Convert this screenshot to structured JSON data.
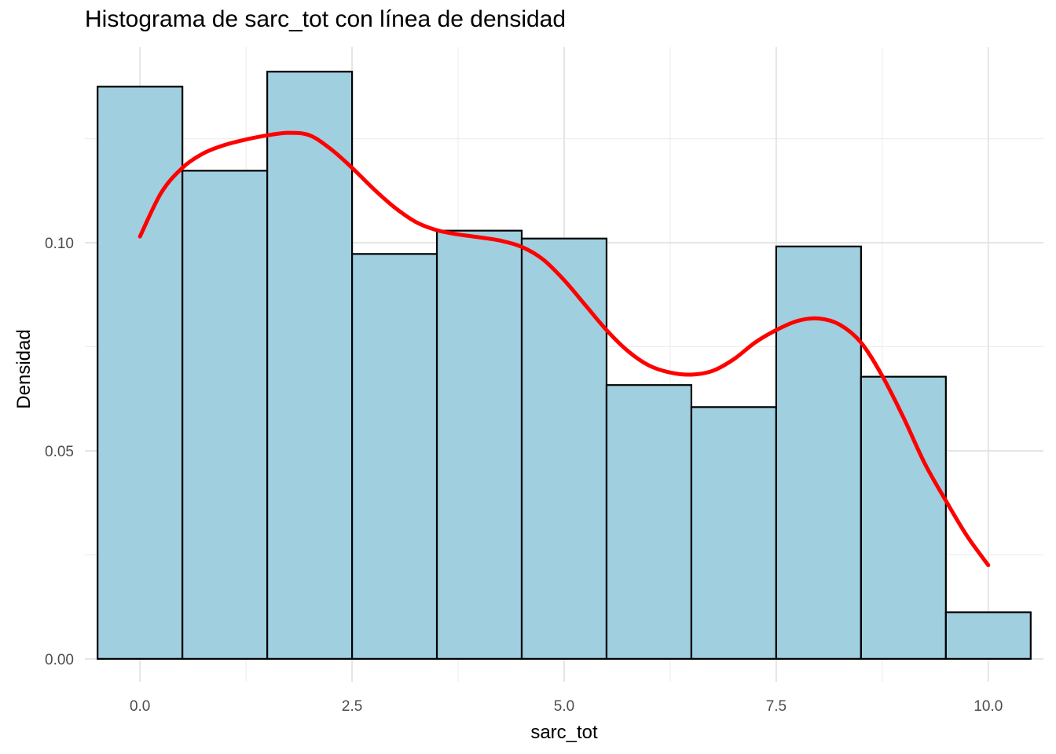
{
  "chart_data": {
    "type": "bar",
    "title": "Histograma de sarc_tot con línea de densidad",
    "xlabel": "sarc_tot",
    "ylabel": "Densidad",
    "bin_width": 1,
    "bins_center": [
      0,
      1,
      2,
      3,
      4,
      5,
      6,
      7,
      8,
      9,
      10
    ],
    "values": [
      0.1375,
      0.1173,
      0.1411,
      0.0973,
      0.1029,
      0.101,
      0.0658,
      0.0605,
      0.0991,
      0.0678,
      0.0112
    ],
    "xlim": [
      -0.65,
      10.65
    ],
    "ylim": [
      -0.0055,
      0.147
    ],
    "x_ticks": [
      0.0,
      2.5,
      5.0,
      7.5,
      10.0
    ],
    "x_tick_labels": [
      "0.0",
      "2.5",
      "5.0",
      "7.5",
      "10.0"
    ],
    "y_ticks": [
      0.0,
      0.05,
      0.1
    ],
    "y_tick_labels": [
      "0.00",
      "0.05",
      "0.10"
    ],
    "bar_fill": "#a0cfe0",
    "bar_stroke": "#000000",
    "density_color": "#ff0000",
    "density_line": {
      "x": [
        0,
        0.25,
        0.5,
        0.75,
        1.0,
        1.25,
        1.5,
        1.75,
        2.0,
        2.25,
        2.5,
        2.75,
        3.0,
        3.25,
        3.5,
        3.75,
        4.0,
        4.25,
        4.5,
        4.75,
        5.0,
        5.25,
        5.5,
        5.75,
        6.0,
        6.25,
        6.5,
        6.75,
        7.0,
        7.25,
        7.5,
        7.75,
        8.0,
        8.25,
        8.5,
        8.75,
        9.0,
        9.25,
        9.5,
        9.75,
        10.0
      ],
      "y": [
        0.1015,
        0.112,
        0.118,
        0.1215,
        0.1235,
        0.1248,
        0.1258,
        0.1264,
        0.1258,
        0.1225,
        0.118,
        0.113,
        0.1085,
        0.105,
        0.103,
        0.102,
        0.1013,
        0.1005,
        0.099,
        0.096,
        0.091,
        0.085,
        0.079,
        0.074,
        0.0705,
        0.0688,
        0.0683,
        0.0692,
        0.072,
        0.076,
        0.079,
        0.0812,
        0.0818,
        0.0803,
        0.076,
        0.068,
        0.058,
        0.047,
        0.038,
        0.0295,
        0.0225
      ]
    }
  }
}
